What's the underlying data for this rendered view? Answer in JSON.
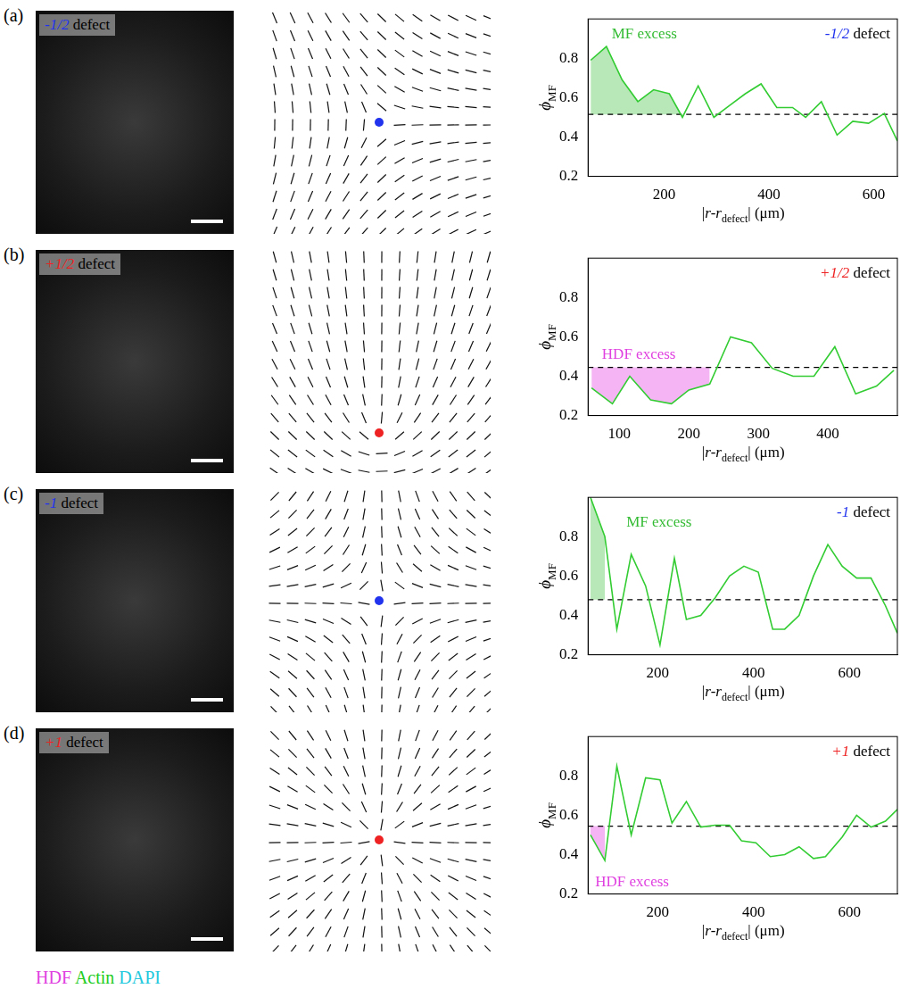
{
  "panels": [
    {
      "letter": "(a)",
      "image_label": {
        "charge": "-1/2",
        "text": "defect"
      },
      "charge": -0.5,
      "charge_color": "#2233ee"
    },
    {
      "letter": "(b)",
      "image_label": {
        "charge": "+1/2",
        "text": "defect"
      },
      "charge": 0.5,
      "charge_color": "#ee2222"
    },
    {
      "letter": "(c)",
      "image_label": {
        "charge": "-1",
        "text": "defect"
      },
      "charge": -1,
      "charge_color": "#2233ee"
    },
    {
      "letter": "(d)",
      "image_label": {
        "charge": "+1",
        "text": "defect"
      },
      "charge": 1,
      "charge_color": "#ee2222"
    }
  ],
  "legend_text": [
    {
      "text": "HDF",
      "color": "#e040e0"
    },
    {
      "text": "Actin",
      "color": "#22cc22"
    },
    {
      "text": "DAPI",
      "color": "#22c8dd"
    }
  ],
  "chart_data": [
    {
      "type": "line",
      "color": "#33cc33",
      "grid": false,
      "x_label": {
        "text": "|r-r",
        "sub": "defect",
        "after": "| (μm)"
      },
      "y_label": {
        "text": "ϕ",
        "sub": "MF"
      },
      "defect_label": {
        "charge": "-1/2",
        "text": "defect",
        "color": "#2233ee"
      },
      "x": [
        60,
        90,
        120,
        150,
        180,
        210,
        235,
        265,
        295,
        325,
        355,
        385,
        415,
        445,
        470,
        500,
        530,
        560,
        590,
        620,
        645
      ],
      "values": [
        0.79,
        0.86,
        0.69,
        0.58,
        0.64,
        0.62,
        0.5,
        0.66,
        0.5,
        0.56,
        0.62,
        0.67,
        0.55,
        0.55,
        0.5,
        0.58,
        0.41,
        0.48,
        0.47,
        0.52,
        0.38
      ],
      "baseline": {
        "value": 0.515,
        "line_style": "dashed",
        "color": "#000000"
      },
      "shade": {
        "x_end": 235,
        "color": "#b8e8b8"
      },
      "annotation": {
        "text": "MF excess",
        "x": 100,
        "y": 0.9,
        "color": "#33bb33"
      },
      "xlim": [
        55,
        645
      ],
      "xticks": [
        200,
        400,
        600
      ],
      "ylim": [
        0.2,
        1.0
      ],
      "yticks": [
        0.2,
        0.4,
        0.6,
        0.8
      ]
    },
    {
      "type": "line",
      "color": "#33cc33",
      "grid": false,
      "x_label": {
        "text": "|r-r",
        "sub": "defect",
        "after": "| (μm)"
      },
      "y_label": {
        "text": "ϕ",
        "sub": "MF"
      },
      "defect_label": {
        "charge": "+1/2",
        "text": "defect",
        "color": "#ee2222"
      },
      "x": [
        60,
        90,
        115,
        145,
        175,
        200,
        230,
        260,
        290,
        320,
        350,
        380,
        410,
        440,
        470,
        495
      ],
      "values": [
        0.34,
        0.26,
        0.4,
        0.28,
        0.26,
        0.33,
        0.36,
        0.6,
        0.57,
        0.44,
        0.4,
        0.4,
        0.55,
        0.31,
        0.35,
        0.43
      ],
      "baseline": {
        "value": 0.445,
        "line_style": "dashed",
        "color": "#000000"
      },
      "shade": {
        "x_end": 245,
        "color": "#f5b5f5"
      },
      "annotation": {
        "text": "HDF excess",
        "x": 75,
        "y": 0.49,
        "color": "#e040e0"
      },
      "xlim": [
        55,
        500
      ],
      "xticks": [
        100,
        200,
        300,
        400
      ],
      "ylim": [
        0.2,
        1.0
      ],
      "yticks": [
        0.2,
        0.4,
        0.6,
        0.8
      ]
    },
    {
      "type": "line",
      "color": "#33cc33",
      "grid": false,
      "x_label": {
        "text": "|r-r",
        "sub": "defect",
        "after": "| (μm)"
      },
      "y_label": {
        "text": "ϕ",
        "sub": "MF"
      },
      "defect_label": {
        "charge": "-1",
        "text": "defect",
        "color": "#2233ee"
      },
      "x": [
        60,
        90,
        115,
        145,
        175,
        205,
        235,
        260,
        290,
        320,
        350,
        380,
        410,
        440,
        465,
        495,
        525,
        555,
        585,
        615,
        645,
        675,
        700
      ],
      "values": [
        1.0,
        0.8,
        0.33,
        0.71,
        0.55,
        0.25,
        0.69,
        0.38,
        0.4,
        0.49,
        0.6,
        0.65,
        0.62,
        0.33,
        0.33,
        0.4,
        0.6,
        0.76,
        0.65,
        0.59,
        0.59,
        0.45,
        0.31
      ],
      "baseline": {
        "value": 0.48,
        "line_style": "dashed",
        "color": "#000000"
      },
      "shade": {
        "x_end": 105,
        "color": "#b8e8b8"
      },
      "annotation": {
        "text": "MF excess",
        "x": 135,
        "y": 0.85,
        "color": "#33bb33"
      },
      "xlim": [
        55,
        700
      ],
      "xticks": [
        200,
        400,
        600
      ],
      "ylim": [
        0.2,
        1.0
      ],
      "yticks": [
        0.2,
        0.4,
        0.6,
        0.8
      ]
    },
    {
      "type": "line",
      "color": "#33cc33",
      "grid": false,
      "x_label": {
        "text": "|r-r",
        "sub": "defect",
        "after": "| (μm)"
      },
      "y_label": {
        "text": "ϕ",
        "sub": "MF"
      },
      "defect_label": {
        "charge": "+1",
        "text": "defect",
        "color": "#ee2222"
      },
      "x": [
        60,
        90,
        115,
        145,
        175,
        205,
        230,
        260,
        290,
        320,
        350,
        375,
        405,
        435,
        465,
        495,
        525,
        550,
        585,
        615,
        645,
        675,
        700
      ],
      "values": [
        0.5,
        0.37,
        0.85,
        0.5,
        0.79,
        0.78,
        0.56,
        0.67,
        0.54,
        0.55,
        0.55,
        0.47,
        0.46,
        0.39,
        0.4,
        0.44,
        0.38,
        0.39,
        0.49,
        0.6,
        0.54,
        0.57,
        0.63
      ],
      "baseline": {
        "value": 0.545,
        "line_style": "dashed",
        "color": "#000000"
      },
      "shade": {
        "x_end": 90,
        "color": "#f5b5f5"
      },
      "annotation": {
        "text": "HDF excess",
        "x": 70,
        "y": 0.24,
        "color": "#e040e0"
      },
      "xlim": [
        55,
        700
      ],
      "xticks": [
        200,
        400,
        600
      ],
      "ylim": [
        0.2,
        1.0
      ],
      "yticks": [
        0.2,
        0.4,
        0.6,
        0.8
      ]
    }
  ]
}
